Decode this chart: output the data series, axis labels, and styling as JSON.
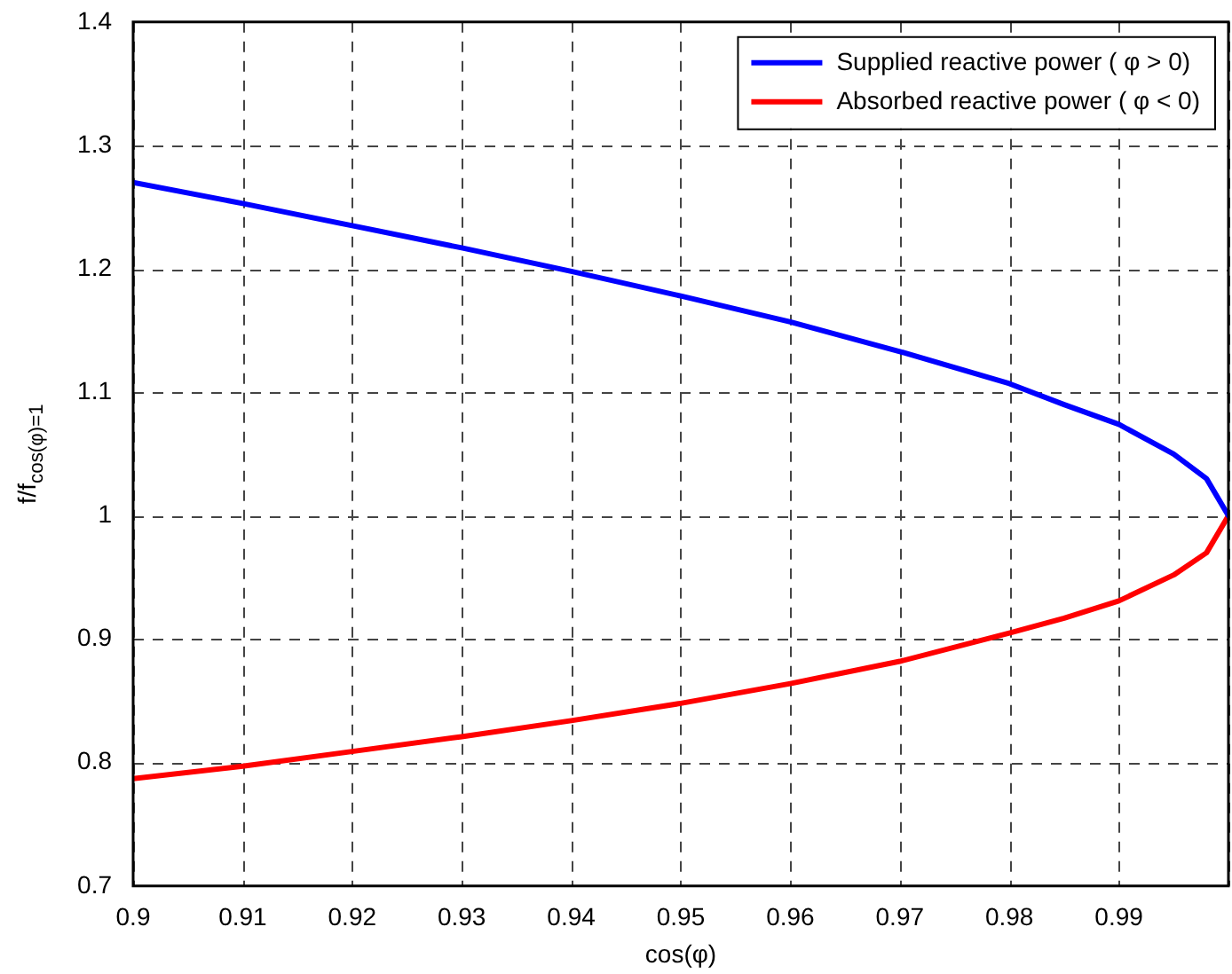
{
  "chart_data": {
    "type": "line",
    "xlabel": "cos(φ)",
    "ylabel": "f/f$_{cos(φ)=1}$",
    "xlim": [
      0.9,
      1.0
    ],
    "xticks": [
      0.9,
      0.91,
      0.92,
      0.93,
      0.94,
      0.95,
      0.96,
      0.97,
      0.98,
      0.99,
      {
        "value": 1.0,
        "label": null
      }
    ],
    "ylim": [
      0.7,
      1.4
    ],
    "yticks": [
      0.7,
      0.8,
      0.9,
      1,
      1.1,
      1.2,
      1.3,
      1.4
    ],
    "grid": true,
    "legend": "top right",
    "marker": "none",
    "line_style": "solid",
    "x": [
      0.9,
      0.91,
      0.92,
      0.93,
      0.94,
      0.95,
      0.96,
      0.97,
      0.98,
      0.985,
      0.99,
      0.995,
      0.998,
      1.0
    ],
    "series": [
      {
        "name": "Supplied reactive power ( φ > 0)",
        "color": "#0000ff",
        "values": [
          1.27,
          1.253,
          1.235,
          1.217,
          1.198,
          1.178,
          1.157,
          1.133,
          1.107,
          1.09,
          1.074,
          1.05,
          1.03,
          1.0
        ]
      },
      {
        "name": "Absorbed reactive power ( φ < 0)",
        "color": "#ff0000",
        "values": [
          0.787,
          0.797,
          0.809,
          0.821,
          0.834,
          0.848,
          0.864,
          0.882,
          0.905,
          0.917,
          0.931,
          0.952,
          0.97,
          1.0
        ]
      }
    ]
  }
}
